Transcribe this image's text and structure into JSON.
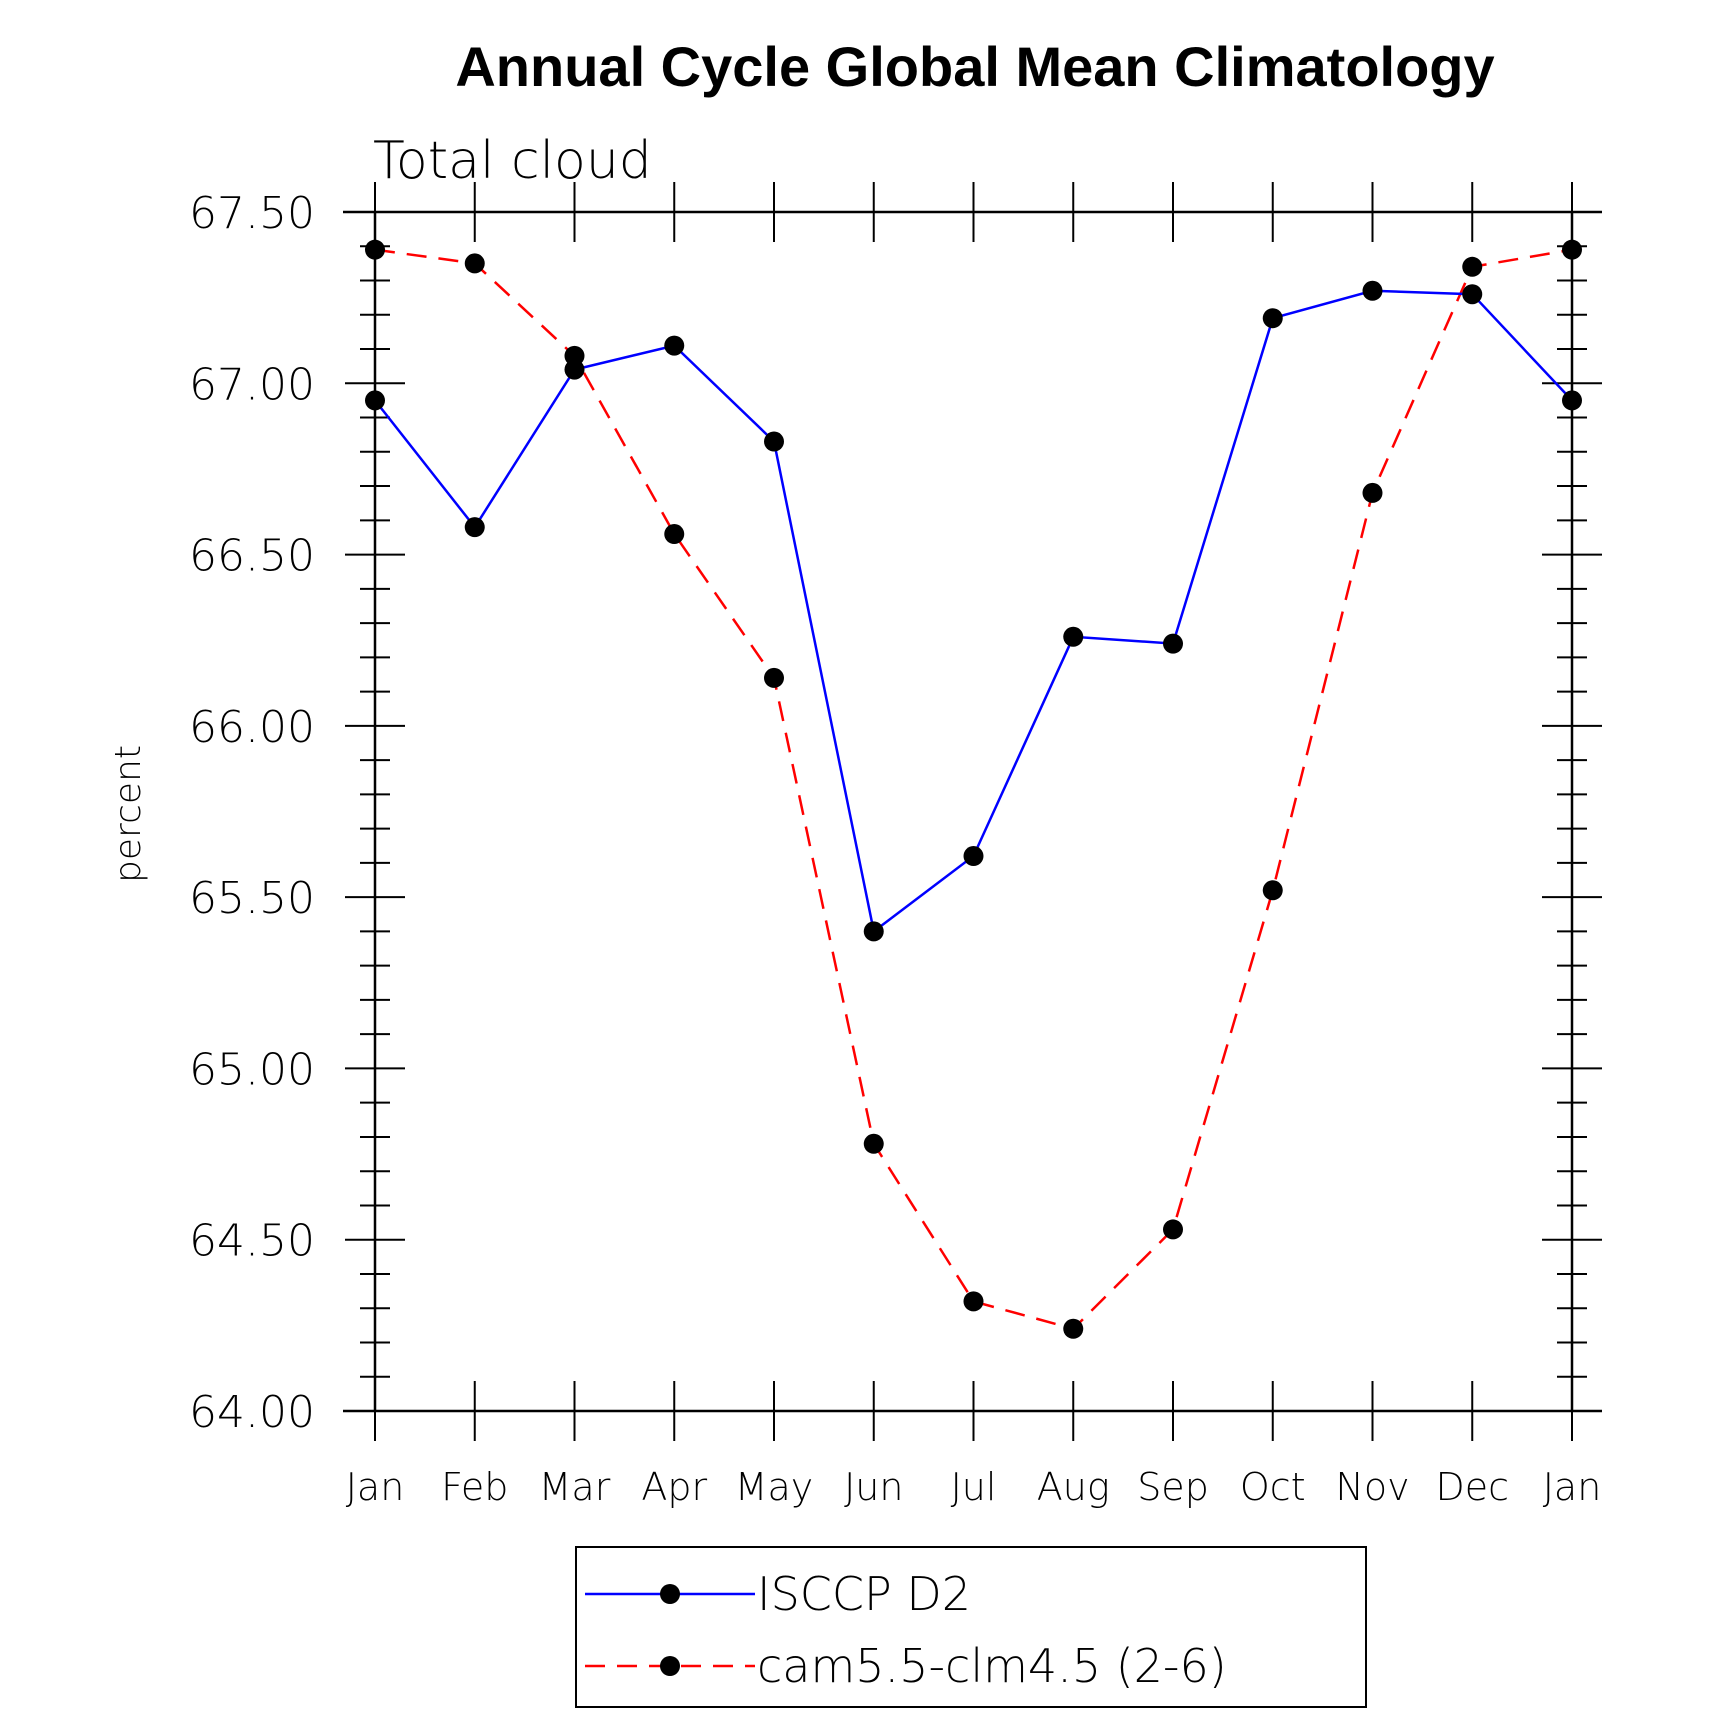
{
  "chart_data": {
    "type": "line",
    "title": "Annual Cycle Global Mean Climatology",
    "subtitle": "Total cloud",
    "xlabel": "",
    "ylabel": "percent",
    "ylim": [
      64.0,
      67.5
    ],
    "yticks": [
      "64.00",
      "64.50",
      "65.00",
      "65.50",
      "66.00",
      "66.50",
      "67.00",
      "67.50"
    ],
    "categories": [
      "Jan",
      "Feb",
      "Mar",
      "Apr",
      "May",
      "Jun",
      "Jul",
      "Aug",
      "Sep",
      "Oct",
      "Nov",
      "Dec",
      "Jan"
    ],
    "series": [
      {
        "name": "ISCCP D2",
        "color": "#0000ff",
        "dash": "solid",
        "values": [
          66.95,
          66.58,
          67.04,
          67.11,
          66.83,
          65.4,
          65.62,
          66.26,
          66.24,
          67.19,
          67.27,
          67.26,
          66.95
        ]
      },
      {
        "name": "cam5.5-clm4.5 (2-6)",
        "color": "#ff0000",
        "dash": "dashed",
        "values": [
          67.39,
          67.35,
          67.08,
          66.56,
          66.14,
          64.78,
          64.32,
          64.24,
          64.53,
          65.52,
          66.68,
          67.34,
          67.39
        ]
      }
    ],
    "legend_position": "bottom-center",
    "grid": false
  }
}
